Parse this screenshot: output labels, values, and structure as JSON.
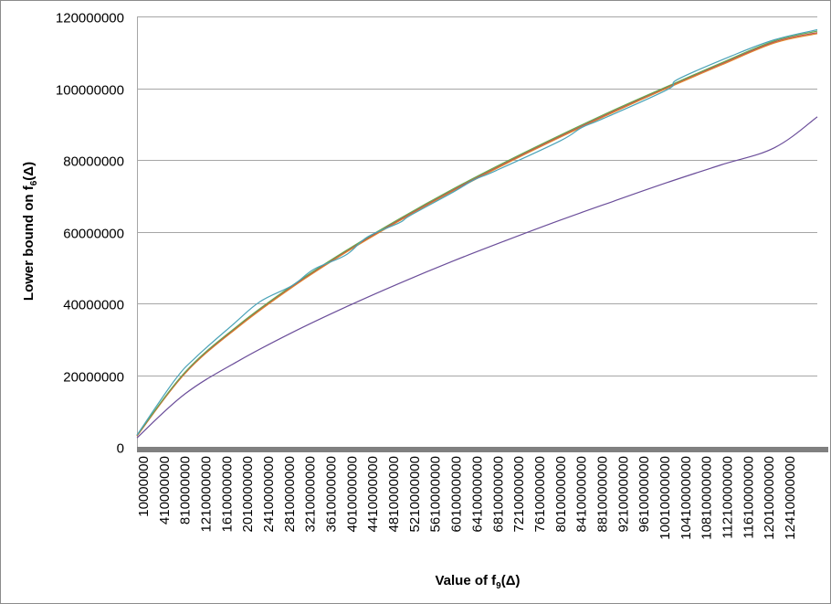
{
  "colors": {
    "grid": "#a6a6a6",
    "axis_bar": "#808080",
    "series_cyan": "#4aa3b8",
    "series_green": "#6aa84f",
    "series_red": "#c0504d",
    "series_orange": "#e08a2c",
    "series_purple": "#6b4e9a"
  },
  "chart_data": {
    "type": "line",
    "xlabel": {
      "main": "Value of f",
      "sub": "9",
      "tail": "(Δ)"
    },
    "ylabel": {
      "main": "Lower bound on f",
      "sub": "6",
      "tail": "(Δ)"
    },
    "ylim": [
      0,
      120000000
    ],
    "y_ticks": [
      "0",
      "20000000",
      "40000000",
      "60000000",
      "80000000",
      "100000000",
      "120000000"
    ],
    "x_range": [
      10000000,
      1280000000
    ],
    "x_ticks": [
      "10000000",
      "410000000",
      "810000000",
      "1210000000",
      "1610000000",
      "2010000000",
      "2410000000",
      "2810000000",
      "3210000000",
      "3610000000",
      "4010000000",
      "4410000000",
      "4810000000",
      "5210000000",
      "5610000000",
      "6010000000",
      "6410000000",
      "6810000000",
      "7210000000",
      "7610000000",
      "8010000000",
      "8410000000",
      "8810000000",
      "9210000000",
      "9610000000",
      "10010000000",
      "10410000000",
      "10810000000",
      "11210000000",
      "11610000000",
      "12010000000",
      "12410000000"
    ],
    "grid": "horizontal",
    "legend": "none",
    "series": [
      {
        "color_key": "series_purple",
        "x": [
          10000000,
          100000000,
          200000000,
          300000000,
          400000000,
          500000000,
          600000000,
          700000000,
          800000000,
          900000000,
          1000000000,
          1100000000,
          1200000000,
          1280000000
        ],
        "values": [
          2500000,
          14800000,
          24000000,
          31900000,
          39000000,
          45600000,
          51800000,
          57600000,
          63200000,
          68500000,
          73700000,
          78600000,
          83400000,
          92000000
        ]
      },
      {
        "color_key": "series_orange",
        "x": [
          10000000,
          100000000,
          200000000,
          300000000,
          400000000,
          500000000,
          600000000,
          700000000,
          800000000,
          900000000,
          1000000000,
          1100000000,
          1200000000,
          1280000000
        ],
        "values": [
          3000000,
          20500000,
          33500000,
          44500000,
          54200000,
          63000000,
          71300000,
          79000000,
          86300000,
          93300000,
          100000000,
          106400000,
          112600000,
          115200000
        ]
      },
      {
        "color_key": "series_red",
        "x": [
          10000000,
          100000000,
          200000000,
          300000000,
          400000000,
          500000000,
          600000000,
          700000000,
          800000000,
          900000000,
          1000000000,
          1100000000,
          1200000000,
          1280000000
        ],
        "values": [
          3100000,
          20700000,
          33800000,
          44800000,
          54500000,
          63300000,
          71600000,
          79300000,
          86600000,
          93600000,
          100300000,
          106700000,
          112900000,
          115500000
        ]
      },
      {
        "color_key": "series_green",
        "x": [
          10000000,
          100000000,
          200000000,
          300000000,
          400000000,
          500000000,
          600000000,
          700000000,
          800000000,
          900000000,
          1000000000,
          1100000000,
          1200000000,
          1280000000
        ],
        "values": [
          3200000,
          20900000,
          34000000,
          45000000,
          54700000,
          63600000,
          71900000,
          79600000,
          86900000,
          93900000,
          100500000,
          107000000,
          113200000,
          115900000
        ]
      },
      {
        "color_key": "series_cyan",
        "x": [
          10000000,
          80000000,
          120000000,
          190000000,
          240000000,
          300000000,
          340000000,
          400000000,
          440000000,
          500000000,
          520000000,
          600000000,
          640000000,
          680000000,
          800000000,
          840000000,
          880000000,
          1000000000,
          1020000000,
          1120000000,
          1200000000,
          1280000000
        ],
        "values": [
          3300000,
          18500000,
          25000000,
          34200000,
          40500000,
          45000000,
          49500000,
          53500000,
          58500000,
          62500000,
          64500000,
          71000000,
          74500000,
          77000000,
          85300000,
          89000000,
          91500000,
          99600000,
          102500000,
          109000000,
          113500000,
          116300000
        ]
      }
    ]
  }
}
